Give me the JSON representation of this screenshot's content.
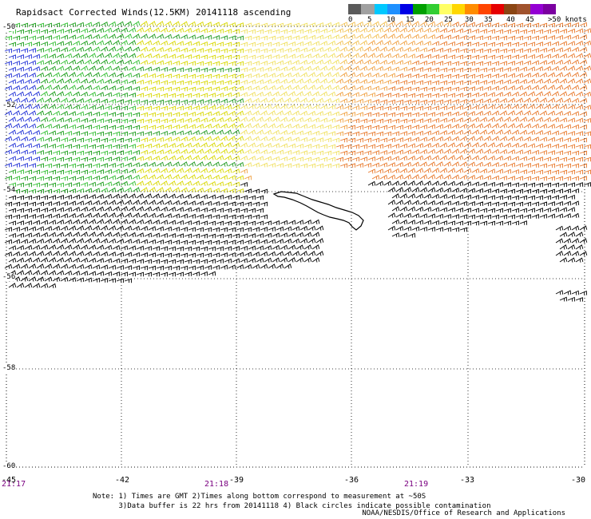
{
  "title": "Rapidsact Corrected Winds(12.5KM) 20141118 ascending",
  "colorbar": {
    "colors": [
      "#5a5a5a",
      "#a0a0a0",
      "#00c8ff",
      "#1e90ff",
      "#0000e6",
      "#00a000",
      "#32cd32",
      "#ffff66",
      "#ffd700",
      "#ff8c00",
      "#ff4500",
      "#e60000",
      "#8b4513",
      "#a0522d",
      "#9400d3",
      "#7b00a0"
    ],
    "labels": [
      "0",
      "5",
      "10",
      "15",
      "20",
      "25",
      "30",
      "35",
      "40",
      "45",
      ">50 knots"
    ]
  },
  "map": {
    "lat_labels": [
      "-50",
      "-52",
      "-54",
      "-56",
      "-58",
      "-60"
    ],
    "lon_labels": [
      "-45",
      "-42",
      "-39",
      "-36",
      "-33",
      "-30"
    ],
    "time_labels": [
      "21:17",
      "21:18",
      "21:19"
    ]
  },
  "notes": {
    "line1": "Note: 1) Times are GMT 2)Times along bottom correspond to measurement at ~50S",
    "line2": "      3)Data buffer is 22 hrs from 20141118 4) Black circles indicate possible contamination"
  },
  "credit": "NOAA/NESDIS/Office of Research and Applications"
}
